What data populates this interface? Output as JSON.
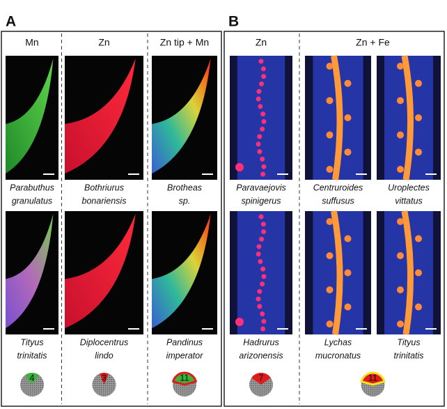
{
  "panels": [
    {
      "label": "A",
      "groups": [
        {
          "header": "Mn",
          "count": 4,
          "columns": [
            {
              "top": [
                "Parabuthus",
                "granulatus"
              ],
              "bottom": [
                "Tityus",
                "trinitatis"
              ]
            }
          ]
        },
        {
          "header": "Zn",
          "count": 3,
          "columns": [
            {
              "top": [
                "Bothriurus",
                "bonariensis"
              ],
              "bottom": [
                "Diplocentrus",
                "lindo"
              ]
            }
          ]
        },
        {
          "header": "Zn tip + Mn",
          "count": 11,
          "columns": [
            {
              "top": [
                "Brotheas",
                "sp."
              ],
              "bottom": [
                "Pandinus",
                "imperator"
              ]
            }
          ]
        }
      ]
    },
    {
      "label": "B",
      "groups": [
        {
          "header": "Zn",
          "count": 7,
          "columns": [
            {
              "top": [
                "Paravaejovis",
                "spinigerus"
              ],
              "bottom": [
                "Hadrurus",
                "arizonensis"
              ]
            }
          ]
        },
        {
          "header": "Zn + Fe",
          "count": 11,
          "columns": [
            {
              "top": [
                "Centruroides",
                "suffusus"
              ],
              "bottom": [
                "Lychas",
                "mucronatus"
              ]
            },
            {
              "top": [
                "Uroplectes",
                "vittatus"
              ],
              "bottom": [
                "Tityus",
                "trinitatis"
              ]
            }
          ]
        }
      ]
    }
  ]
}
